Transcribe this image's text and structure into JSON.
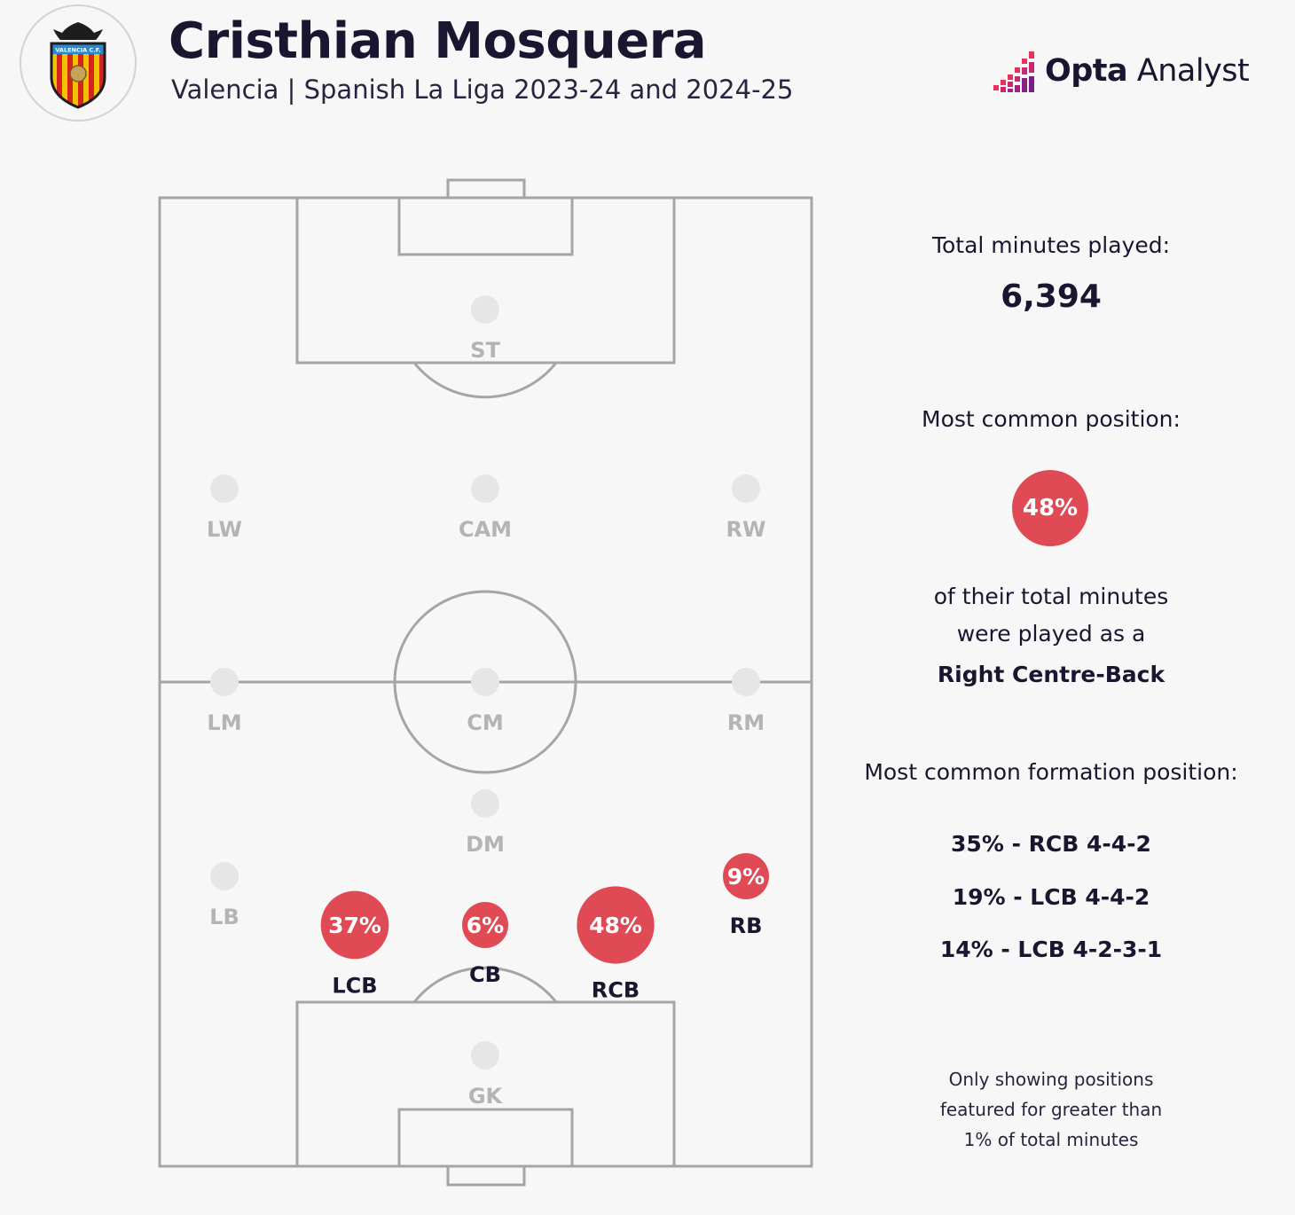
{
  "header": {
    "title": "Cristhian Mosquera",
    "subtitle": "Valencia | Spanish La Liga 2023-24 and 2024-25",
    "crest_text": "VALENCIA C.F.",
    "brand_bold": "Opta",
    "brand_rest": " Analyst"
  },
  "positions": [
    {
      "id": "st",
      "label": "ST",
      "value": null
    },
    {
      "id": "lw",
      "label": "LW",
      "value": null
    },
    {
      "id": "cam",
      "label": "CAM",
      "value": null
    },
    {
      "id": "rw",
      "label": "RW",
      "value": null
    },
    {
      "id": "lm",
      "label": "LM",
      "value": null
    },
    {
      "id": "cm",
      "label": "CM",
      "value": null
    },
    {
      "id": "rm",
      "label": "RM",
      "value": null
    },
    {
      "id": "dm",
      "label": "DM",
      "value": null
    },
    {
      "id": "lb",
      "label": "LB",
      "value": null
    },
    {
      "id": "lcb",
      "label": "LCB",
      "value": "37%",
      "pct": 37
    },
    {
      "id": "cb",
      "label": "CB",
      "value": "6%",
      "pct": 6
    },
    {
      "id": "rcb",
      "label": "RCB",
      "value": "48%",
      "pct": 48
    },
    {
      "id": "rb",
      "label": "RB",
      "value": "9%",
      "pct": 9
    },
    {
      "id": "gk",
      "label": "GK",
      "value": null
    }
  ],
  "summary": {
    "total_label": "Total minutes played:",
    "total_value": "6,394",
    "common_label": "Most common position:",
    "common_pct": "48%",
    "desc_line1": "of their total minutes",
    "desc_line2": "were played as a",
    "common_position": "Right Centre-Back",
    "formation_label": "Most common formation position:",
    "formations": [
      "35% - RCB 4-4-2",
      "19% - LCB 4-4-2",
      "14% - LCB 4-2-3-1"
    ],
    "note": [
      "Only showing positions",
      "featured for greater than",
      "1% of total minutes"
    ]
  },
  "colors": {
    "accent": "#e04a55",
    "pitch_line": "#a5a5a5",
    "inactive_dot": "#e6e6e6",
    "inactive_label": "#b4b4b4",
    "text": "#1c1530"
  }
}
